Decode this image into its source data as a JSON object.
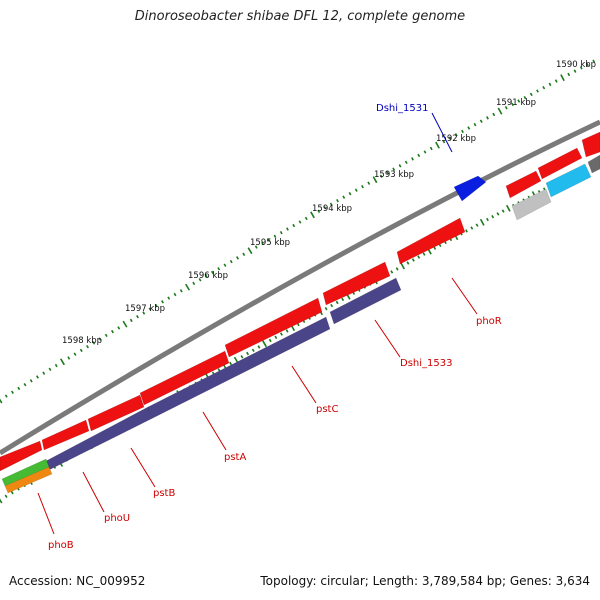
{
  "title": "Dinoroseobacter shibae DFL 12, complete genome",
  "footer": {
    "accession": "Accession: NC_009952",
    "stats": "Topology: circular; Length: 3,789,584 bp; Genes: 3,634"
  },
  "colors": {
    "backbone": "#7a7a7a",
    "cds_red": "#ee1111",
    "cds_purple": "#4a4488",
    "cds_blue": "#0a1ee0",
    "cds_cyan": "#22bbee",
    "cds_grey_light": "#c0c0c0",
    "cds_grey_dark": "#6a6a6a",
    "cds_green": "#44bb33",
    "cds_orange": "#ee8811",
    "tick_green": "#1a7a1a",
    "label_red": "#cc0000",
    "label_blue": "#0000bb"
  },
  "scale_labels": [
    "1590 kbp",
    "1591 kbp",
    "1592 kbp",
    "1593 kbp",
    "1594 kbp",
    "1595 kbp",
    "1596 kbp",
    "1597 kbp",
    "1598 kbp"
  ],
  "gene_labels": [
    {
      "id": "dshi1531",
      "text": "Dshi_1531",
      "color": "blue"
    },
    {
      "id": "phoR",
      "text": "phoR",
      "color": "red"
    },
    {
      "id": "dshi1533",
      "text": "Dshi_1533",
      "color": "red"
    },
    {
      "id": "pstC",
      "text": "pstC",
      "color": "red"
    },
    {
      "id": "pstA",
      "text": "pstA",
      "color": "red"
    },
    {
      "id": "pstB",
      "text": "pstB",
      "color": "red"
    },
    {
      "id": "phoU",
      "text": "phoU",
      "color": "red"
    },
    {
      "id": "phoB",
      "text": "phoB",
      "color": "red"
    }
  ]
}
